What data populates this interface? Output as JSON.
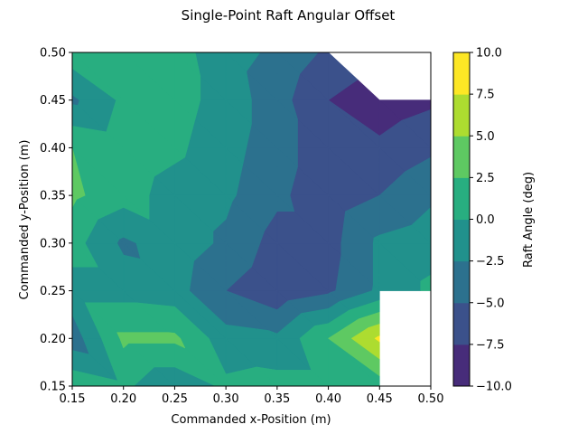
{
  "chart_data": {
    "type": "contourf",
    "title": "Single-Point Raft Angular Offset",
    "xlabel": "Commanded x-Position (m)",
    "ylabel": "Commanded y-Position (m)",
    "colorbar_label": "Raft Angle (deg)",
    "xlim": [
      0.15,
      0.5
    ],
    "ylim": [
      0.15,
      0.5
    ],
    "x_ticks": [
      "0.15",
      "0.20",
      "0.25",
      "0.30",
      "0.35",
      "0.40",
      "0.45",
      "0.50"
    ],
    "y_ticks": [
      "0.15",
      "0.20",
      "0.25",
      "0.30",
      "0.35",
      "0.40",
      "0.45",
      "0.50"
    ],
    "levels": [
      -10.0,
      -7.5,
      -5.0,
      -2.5,
      0.0,
      2.5,
      5.0,
      7.5,
      10.0
    ],
    "colorbar_ticks": [
      "−10.0",
      "−7.5",
      "−5.0",
      "−2.5",
      "0.0",
      "2.5",
      "5.0",
      "7.5",
      "10.0"
    ],
    "level_colors": [
      "#472c7a",
      "#3b518b",
      "#2c718e",
      "#21918c",
      "#28ae80",
      "#5ec962",
      "#addc30",
      "#fde725"
    ],
    "x_grid": [
      0.15,
      0.2,
      0.25,
      0.3,
      0.35,
      0.4,
      0.45,
      0.5
    ],
    "y_grid": [
      0.5,
      0.45,
      0.4,
      0.35,
      0.3,
      0.25,
      0.2,
      0.15
    ],
    "z_rows": [
      [
        1.5,
        1.0,
        1.0,
        -1.5,
        -3.0,
        -5.5,
        null,
        null
      ],
      [
        -3.0,
        0.5,
        1.0,
        -1.0,
        -4.0,
        -7.5,
        -9.0,
        -8.0
      ],
      [
        2.5,
        1.5,
        0.5,
        -1.5,
        -4.0,
        -6.5,
        -7.0,
        -5.5
      ],
      [
        3.0,
        1.0,
        -1.0,
        -2.0,
        -4.5,
        -6.5,
        -5.0,
        -3.0
      ],
      [
        1.0,
        -3.0,
        -1.0,
        -3.0,
        -6.0,
        -6.0,
        -2.0,
        -1.0
      ],
      [
        -1.0,
        -1.0,
        -1.5,
        -5.0,
        -7.0,
        -5.5,
        -2.0,
        0.5
      ],
      [
        -4.0,
        3.0,
        3.0,
        -1.5,
        -2.0,
        2.5,
        8.0,
        null
      ],
      [
        2.0,
        0.5,
        -2.0,
        0.5,
        1.0,
        1.0,
        1.0,
        null
      ]
    ],
    "grid": false,
    "colorbar_position": "right"
  }
}
